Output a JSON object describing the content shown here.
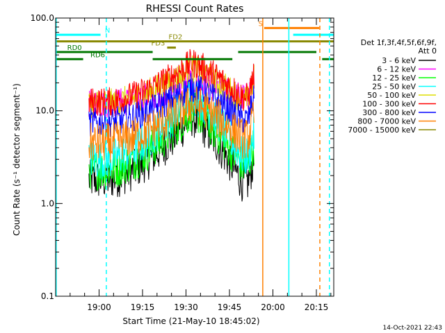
{
  "chart_data": {
    "type": "line",
    "title": "RHESSI Count Rates",
    "xlabel": "Start Time (21-May-10 18:45:02)",
    "ylabel": "Count Rate (s⁻¹ detector segment⁻¹)",
    "yscale": "log",
    "ylim": [
      0.1,
      100.0
    ],
    "xlim_minutes_from_start": [
      0,
      96
    ],
    "y_ticks": [
      {
        "value": 0.1,
        "label": "0.1"
      },
      {
        "value": 1.0,
        "label": "1.0"
      },
      {
        "value": 10.0,
        "label": "10.0"
      },
      {
        "value": 100.0,
        "label": "100.0"
      }
    ],
    "x_ticks": [
      {
        "value": 15,
        "label": "19:00"
      },
      {
        "value": 30,
        "label": "19:15"
      },
      {
        "value": 45,
        "label": "19:30"
      },
      {
        "value": 60,
        "label": "19:45"
      },
      {
        "value": 75,
        "label": "20:00"
      },
      {
        "value": 90,
        "label": "20:15"
      }
    ],
    "legend_header": [
      "Det 1f,3f,4f,5f,6f,9f,",
      "Att 0"
    ],
    "legend_position": "right",
    "data_range_minutes": [
      11.5,
      68.5
    ],
    "peak_minute": 47,
    "series": [
      {
        "name": "3 - 6 keV",
        "color": "#000000",
        "pre": 1.8,
        "peak": 8.5,
        "post": 1.7
      },
      {
        "name": "6 - 12 keV",
        "color": "#ff00ff",
        "pre": 12.0,
        "peak": 21.0,
        "post": 14.0
      },
      {
        "name": "12 - 25 keV",
        "color": "#00ff00",
        "pre": 2.3,
        "peak": 10.0,
        "post": 2.5
      },
      {
        "name": "25 - 50 keV",
        "color": "#00ffff",
        "pre": 3.0,
        "peak": 15.0,
        "post": 3.2
      },
      {
        "name": "50 - 100 keV",
        "color": "#dddd00",
        "pre": 12.0,
        "peak": 28.0,
        "post": 13.0
      },
      {
        "name": "100 - 300 keV",
        "color": "#ff0000",
        "pre": 12.5,
        "peak": 33.0,
        "post": 14.0
      },
      {
        "name": "300 - 800 keV",
        "color": "#0000ff",
        "pre": 7.5,
        "peak": 18.0,
        "post": 8.0
      },
      {
        "name": "800 - 7000 keV",
        "color": "#ff8000",
        "pre": 4.5,
        "peak": 12.0,
        "post": 5.0
      },
      {
        "name": "7000 - 15000 keV",
        "color": "#888800",
        "pre": 0,
        "peak": 0,
        "post": 0
      }
    ],
    "flag_bars": [
      {
        "label": "N",
        "color": "#00ffff",
        "y": 66,
        "segments": [
          [
            0,
            15.5
          ],
          [
            82,
            96
          ]
        ],
        "label_at": 17
      },
      {
        "label": "S",
        "color": "#ff8000",
        "y": 78,
        "segments": [
          [
            72,
            91
          ]
        ],
        "label_at": 70
      },
      {
        "label": "FD2",
        "color": "#888800",
        "y": 56,
        "segments": [
          [
            0,
            96
          ]
        ],
        "label_at": 39
      },
      {
        "label": "FD3",
        "color": "#888800",
        "y": 48,
        "segments": [
          [
            38.5,
            41.5
          ]
        ],
        "label_at": 33
      },
      {
        "label": "RD0",
        "color": "#007700",
        "y": 43,
        "segments": [
          [
            0,
            33.5
          ],
          [
            63,
            90
          ]
        ],
        "label_at": 4
      },
      {
        "label": "RD6",
        "color": "#007700",
        "y": 36,
        "segments": [
          [
            0,
            9.5
          ],
          [
            33.5,
            61
          ],
          [
            92,
            96
          ]
        ],
        "label_at": 12
      }
    ],
    "vertical_markers": [
      {
        "x": 0.2,
        "color": "#00ffff",
        "style": "solid"
      },
      {
        "x": 17.5,
        "color": "#00ffff",
        "style": "dashed"
      },
      {
        "x": 71.5,
        "color": "#ff8000",
        "style": "solid"
      },
      {
        "x": 80.5,
        "color": "#00ffff",
        "style": "solid"
      },
      {
        "x": 91.2,
        "color": "#ff8000",
        "style": "dashed"
      },
      {
        "x": 94.5,
        "color": "#00ffff",
        "style": "dashed"
      }
    ],
    "grid": false
  },
  "timestamp": "14-Oct-2021 22:43"
}
